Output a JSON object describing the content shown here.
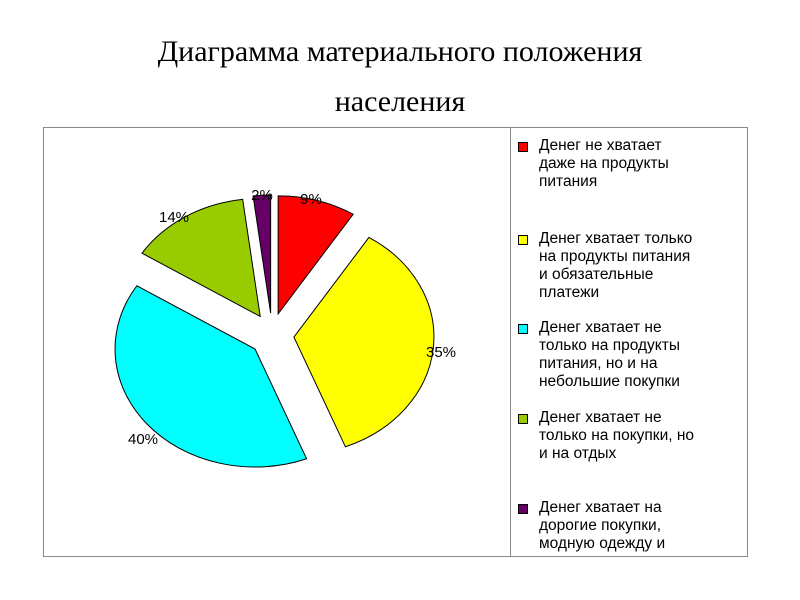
{
  "title_line1": "Диаграмма материального положения",
  "title_line2": "населения",
  "chart_data": {
    "type": "pie",
    "title": "Диаграмма материального положения населения",
    "slices": [
      {
        "label": "Денег не хватает даже на продукты питания",
        "value": 9,
        "value_label": "9%",
        "color": "#ff0000"
      },
      {
        "label": "Денег хватает только на продукты питания и обязательные платежи",
        "value": 35,
        "value_label": "35%",
        "color": "#ffff00"
      },
      {
        "label": "Денег хватает не только на продукты питания, но и на небольшие покупки",
        "value": 40,
        "value_label": "40%",
        "color": "#00ffff"
      },
      {
        "label": "Денег хватает не только на покупки, но и на отдых",
        "value": 14,
        "value_label": "14%",
        "color": "#99cc00"
      },
      {
        "label": "Денег хватает на дорогие покупки, модную одежду и",
        "value": 2,
        "value_label": "2%",
        "color": "#660066"
      }
    ],
    "legend_position": "right"
  },
  "legend": [
    {
      "text": "Денег не хватает\nдаже на продукты\nпитания",
      "color": "#ff0000"
    },
    {
      "text": "Денег хватает только\nна продукты питания\nи обязательные\nплатежи",
      "color": "#ffff00"
    },
    {
      "text": "Денег хватает не\nтолько на продукты\nпитания, но и на\nнебольшие покупки",
      "color": "#00ffff"
    },
    {
      "text": "Денег хватает не\nтолько на покупки, но\nи на отдых",
      "color": "#99cc00"
    },
    {
      "text": "Денег хватает на\nдорогие покупки,\nмодную одежду и",
      "color": "#660066"
    }
  ]
}
